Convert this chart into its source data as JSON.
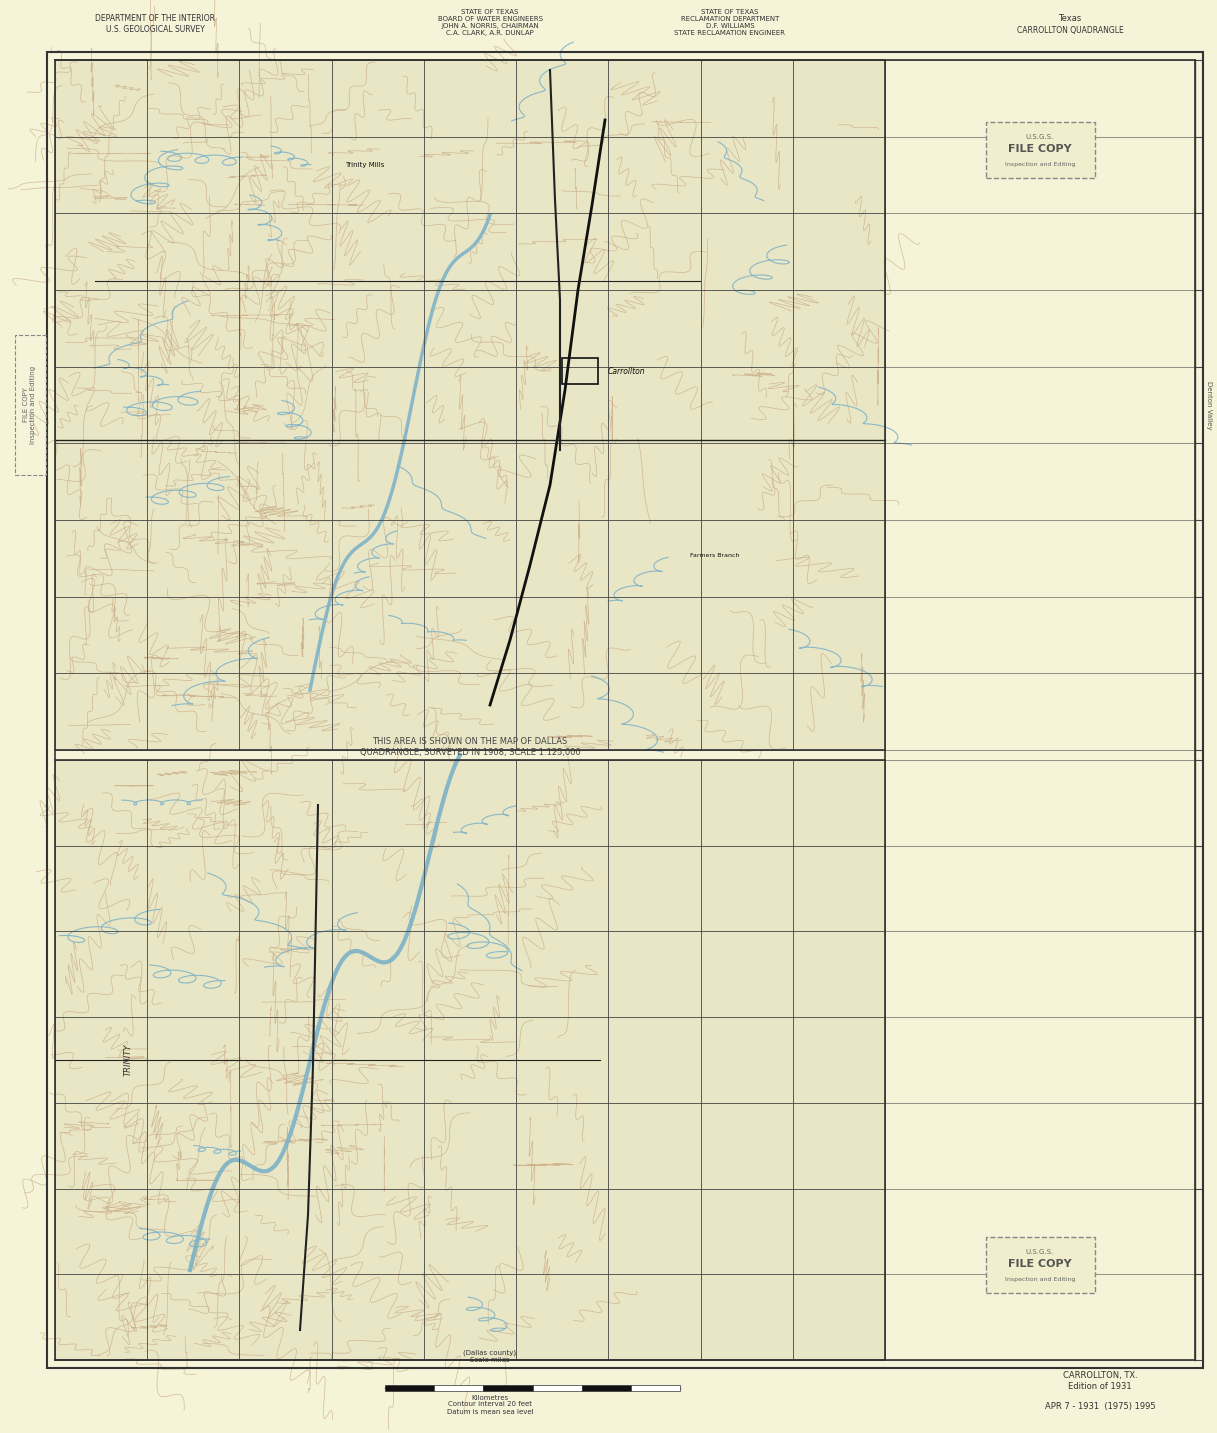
{
  "bg_color": "#f5f3d8",
  "border_color": "#222222",
  "title_top_left": "DEPARTMENT OF THE INTERIOR\nU.S. GEOLOGICAL SURVEY",
  "title_top_center1": "STATE OF TEXAS\nBOARD OF WATER ENGINEERS\nJOHN A. NORRIS, CHAIRMAN\nC.A. CLARK, A.R. DUNLAP",
  "title_top_center2": "STATE OF TEXAS\nRECLAMATION DEPARTMENT\nD.F. WILLIAMS\nSTATE RECLAMATION ENGINEER",
  "title_top_right1": "Texas",
  "title_top_right2": "CARROLLTON QUADRANGLE",
  "center_text": "THIS AREA IS SHOWN ON THE MAP OF DALLAS\nQUADRANGLE, SURVEYED IN 1908, SCALE 1:125,000",
  "bottom_right_title": "CARROLLTON, TX.\nEdition of 1931",
  "bottom_date": "APR 7 - 1931",
  "bottom_date2": "(1975) 1995",
  "contour_text": "Contour interval 20 feet\nDatum is mean sea level",
  "scale_text": "(Dallas county)\nScale miles",
  "scale_bar_label": "Kilometres",
  "fig_width": 12.17,
  "fig_height": 14.33,
  "topo_color": "#c8a882",
  "water_color": "#7ab0c8",
  "grid_color": "#444444"
}
